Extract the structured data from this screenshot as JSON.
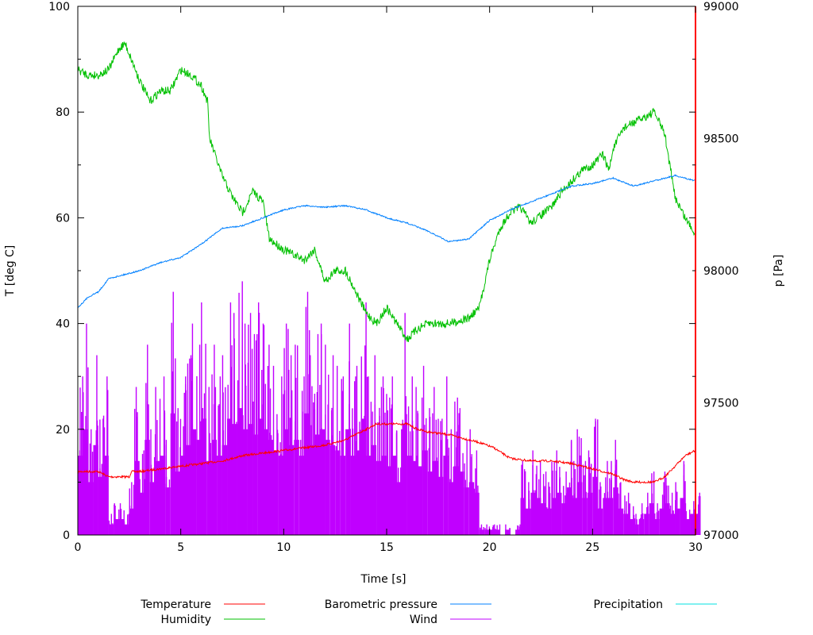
{
  "chart_data": {
    "type": "line",
    "xlabel": "Time [s]",
    "ylabel": "T [deg C]",
    "y2label": "p [Pa]",
    "xlim": [
      0,
      30
    ],
    "ylim": [
      0,
      100
    ],
    "y2lim": [
      97000,
      99000
    ],
    "xticks": [
      "0",
      "5",
      "10",
      "15",
      "20",
      "25",
      "30"
    ],
    "yticks": [
      "0",
      "20",
      "40",
      "60",
      "80",
      "100"
    ],
    "y2ticks": [
      "97000",
      "97500",
      "98000",
      "98500",
      "99000"
    ],
    "grid": false,
    "legend_position": "bottom",
    "series": [
      {
        "name": "Temperature",
        "color": "#ff0000",
        "axis": "y",
        "points": [
          [
            0,
            12
          ],
          [
            1,
            12
          ],
          [
            1.5,
            11
          ],
          [
            2,
            11
          ],
          [
            2.5,
            11
          ],
          [
            2.6,
            12
          ],
          [
            3,
            12
          ],
          [
            5,
            13
          ],
          [
            7,
            14
          ],
          [
            8,
            15
          ],
          [
            10,
            16
          ],
          [
            12,
            17
          ],
          [
            13,
            18
          ],
          [
            14,
            20
          ],
          [
            14.5,
            21
          ],
          [
            15,
            21
          ],
          [
            16,
            21
          ],
          [
            16.5,
            20
          ],
          [
            17,
            19.5
          ],
          [
            18,
            19
          ],
          [
            18.5,
            18.5
          ],
          [
            19.5,
            17.5
          ],
          [
            20.2,
            16.5
          ],
          [
            21,
            14.5
          ],
          [
            22,
            14
          ],
          [
            23,
            14
          ],
          [
            24,
            13.5
          ],
          [
            25,
            12.5
          ],
          [
            26,
            11.5
          ],
          [
            26.5,
            10.5
          ],
          [
            27,
            10
          ],
          [
            28,
            10
          ],
          [
            28.5,
            11
          ],
          [
            29,
            13
          ],
          [
            29.5,
            15
          ],
          [
            30,
            16
          ]
        ]
      },
      {
        "name": "Humidity",
        "color": "#00c000",
        "axis": "y",
        "points": [
          [
            0,
            88
          ],
          [
            0.5,
            87
          ],
          [
            1,
            87
          ],
          [
            1.5,
            88
          ],
          [
            2,
            92
          ],
          [
            2.3,
            93
          ],
          [
            2.7,
            89
          ],
          [
            3,
            86
          ],
          [
            3.5,
            82
          ],
          [
            4,
            84
          ],
          [
            4.5,
            84
          ],
          [
            5,
            88
          ],
          [
            5.5,
            87
          ],
          [
            6,
            85
          ],
          [
            6.3,
            82
          ],
          [
            6.4,
            75
          ],
          [
            7,
            68
          ],
          [
            7.5,
            64
          ],
          [
            8,
            61
          ],
          [
            8.5,
            65
          ],
          [
            9,
            63
          ],
          [
            9.3,
            56
          ],
          [
            10,
            54
          ],
          [
            10.5,
            53
          ],
          [
            11,
            52
          ],
          [
            11.5,
            54
          ],
          [
            12,
            48
          ],
          [
            12.5,
            50
          ],
          [
            13,
            50
          ],
          [
            13.5,
            46
          ],
          [
            14,
            42
          ],
          [
            14.5,
            40
          ],
          [
            15,
            43
          ],
          [
            15.5,
            40
          ],
          [
            16,
            37
          ],
          [
            16.5,
            39
          ],
          [
            17,
            40
          ],
          [
            18,
            40
          ],
          [
            19,
            41
          ],
          [
            19.5,
            43
          ],
          [
            20,
            52
          ],
          [
            20.5,
            58
          ],
          [
            21,
            61
          ],
          [
            21.5,
            62
          ],
          [
            22,
            59
          ],
          [
            23,
            62
          ],
          [
            23.5,
            65
          ],
          [
            24,
            67
          ],
          [
            24.5,
            69
          ],
          [
            25,
            70
          ],
          [
            25.5,
            72
          ],
          [
            25.8,
            69
          ],
          [
            26,
            73
          ],
          [
            26.5,
            77
          ],
          [
            27,
            78
          ],
          [
            27.5,
            79
          ],
          [
            28,
            80
          ],
          [
            28.5,
            76
          ],
          [
            29,
            64
          ],
          [
            29.5,
            60
          ],
          [
            30,
            57
          ]
        ]
      },
      {
        "name": "Barometric pressure",
        "color": "#0080ff",
        "axis": "y2",
        "points": [
          [
            0,
            97860
          ],
          [
            0.5,
            97900
          ],
          [
            1,
            97920
          ],
          [
            1.5,
            97970
          ],
          [
            2,
            97980
          ],
          [
            3,
            98000
          ],
          [
            4,
            98030
          ],
          [
            5,
            98050
          ],
          [
            6,
            98100
          ],
          [
            7,
            98160
          ],
          [
            8,
            98170
          ],
          [
            9,
            98200
          ],
          [
            10,
            98230
          ],
          [
            11,
            98246
          ],
          [
            12,
            98240
          ],
          [
            13,
            98246
          ],
          [
            14,
            98230
          ],
          [
            15,
            98200
          ],
          [
            16,
            98180
          ],
          [
            17,
            98150
          ],
          [
            18,
            98110
          ],
          [
            19,
            98120
          ],
          [
            20,
            98190
          ],
          [
            21,
            98230
          ],
          [
            22,
            98260
          ],
          [
            23,
            98290
          ],
          [
            24,
            98320
          ],
          [
            25,
            98330
          ],
          [
            26,
            98350
          ],
          [
            27,
            98320
          ],
          [
            28,
            98340
          ],
          [
            29,
            98360
          ],
          [
            30,
            98340
          ]
        ]
      },
      {
        "name": "Wind",
        "color": "#c000ff",
        "axis": "y",
        "points": [
          [
            0,
            30
          ],
          [
            0.25,
            40
          ],
          [
            0.5,
            20
          ],
          [
            0.75,
            34
          ],
          [
            1,
            22
          ],
          [
            1.25,
            30
          ],
          [
            1.5,
            4
          ],
          [
            1.75,
            6
          ],
          [
            2,
            6
          ],
          [
            2.25,
            4
          ],
          [
            2.5,
            10
          ],
          [
            2.75,
            28
          ],
          [
            3,
            16
          ],
          [
            3.25,
            36
          ],
          [
            3.5,
            20
          ],
          [
            3.75,
            28
          ],
          [
            4,
            30
          ],
          [
            4.25,
            18
          ],
          [
            4.5,
            46
          ],
          [
            4.75,
            24
          ],
          [
            5,
            30
          ],
          [
            5.25,
            34
          ],
          [
            5.5,
            40
          ],
          [
            5.75,
            36
          ],
          [
            6,
            44
          ],
          [
            6.25,
            28
          ],
          [
            6.5,
            36
          ],
          [
            6.75,
            30
          ],
          [
            7,
            34
          ],
          [
            7.25,
            44
          ],
          [
            7.5,
            42
          ],
          [
            7.75,
            48
          ],
          [
            8,
            40
          ],
          [
            8.25,
            42
          ],
          [
            8.5,
            38
          ],
          [
            8.75,
            44
          ],
          [
            9,
            40
          ],
          [
            9.25,
            36
          ],
          [
            9.5,
            32
          ],
          [
            9.75,
            30
          ],
          [
            10,
            40
          ],
          [
            10.25,
            34
          ],
          [
            10.5,
            36
          ],
          [
            10.75,
            30
          ],
          [
            11,
            46
          ],
          [
            11.25,
            34
          ],
          [
            11.5,
            38
          ],
          [
            11.75,
            40
          ],
          [
            12,
            36
          ],
          [
            12.25,
            34
          ],
          [
            12.5,
            32
          ],
          [
            12.75,
            30
          ],
          [
            13,
            40
          ],
          [
            13.25,
            30
          ],
          [
            13.5,
            32
          ],
          [
            13.75,
            44
          ],
          [
            14,
            30
          ],
          [
            14.25,
            34
          ],
          [
            14.5,
            28
          ],
          [
            14.75,
            30
          ],
          [
            15,
            26
          ],
          [
            15.25,
            30
          ],
          [
            15.5,
            20
          ],
          [
            15.75,
            42
          ],
          [
            16,
            30
          ],
          [
            16.25,
            28
          ],
          [
            16.5,
            26
          ],
          [
            16.75,
            32
          ],
          [
            17,
            24
          ],
          [
            17.25,
            28
          ],
          [
            17.5,
            22
          ],
          [
            17.75,
            30
          ],
          [
            18,
            20
          ],
          [
            18.25,
            26
          ],
          [
            18.5,
            24
          ],
          [
            18.75,
            18
          ],
          [
            19,
            20
          ],
          [
            19.25,
            16
          ],
          [
            19.5,
            2
          ],
          [
            19.75,
            2
          ],
          [
            20,
            2
          ],
          [
            20.25,
            2
          ],
          [
            20.5,
            0
          ],
          [
            20.75,
            2
          ],
          [
            21,
            0
          ],
          [
            21.25,
            2
          ],
          [
            21.5,
            14
          ],
          [
            21.75,
            10
          ],
          [
            22,
            16
          ],
          [
            22.25,
            14
          ],
          [
            22.5,
            12
          ],
          [
            22.75,
            10
          ],
          [
            23,
            14
          ],
          [
            23.25,
            16
          ],
          [
            23.5,
            12
          ],
          [
            23.75,
            18
          ],
          [
            24,
            14
          ],
          [
            24.25,
            20
          ],
          [
            24.5,
            14
          ],
          [
            24.75,
            16
          ],
          [
            25,
            22
          ],
          [
            25.25,
            10
          ],
          [
            25.5,
            14
          ],
          [
            25.75,
            14
          ],
          [
            26,
            18
          ],
          [
            26.25,
            10
          ],
          [
            26.5,
            8
          ],
          [
            26.75,
            6
          ],
          [
            27,
            4
          ],
          [
            27.25,
            6
          ],
          [
            27.5,
            8
          ],
          [
            27.75,
            12
          ],
          [
            28,
            6
          ],
          [
            28.25,
            10
          ],
          [
            28.5,
            12
          ],
          [
            28.75,
            8
          ],
          [
            29,
            10
          ],
          [
            29.25,
            14
          ],
          [
            29.5,
            6
          ],
          [
            29.75,
            8
          ],
          [
            30,
            8
          ]
        ]
      },
      {
        "name": "Precipitation",
        "color": "#00e0e0",
        "axis": "y",
        "points": []
      }
    ]
  }
}
